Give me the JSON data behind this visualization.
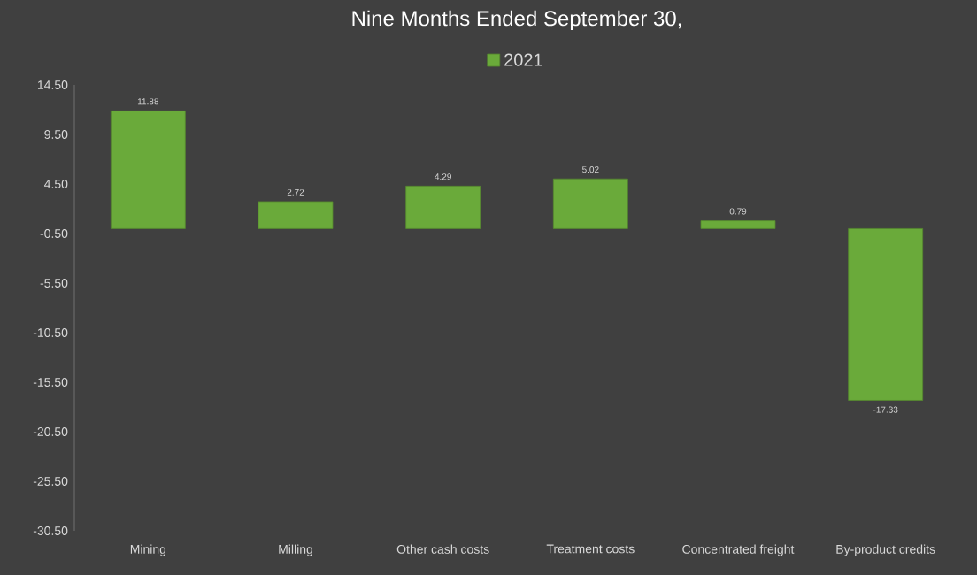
{
  "chart_data": {
    "type": "bar",
    "title": "Nine Months Ended September 30,",
    "categories": [
      "Mining",
      "Milling",
      "Other cash costs",
      "Treatment costs",
      "Concentrated freight",
      "By-product credits"
    ],
    "series": [
      {
        "name": "2021",
        "color": "#6aaa3a",
        "values": [
          11.88,
          2.72,
          4.29,
          5.02,
          0.79,
          -17.33
        ]
      }
    ],
    "ylim": [
      -30.5,
      14.5
    ],
    "yticks": [
      "14.50",
      "9.50",
      "4.50",
      "-0.50",
      "-5.50",
      "-10.50",
      "-15.50",
      "-20.50",
      "-25.50",
      "-30.50"
    ],
    "data_labels": true,
    "legend": "top",
    "grid": false
  }
}
